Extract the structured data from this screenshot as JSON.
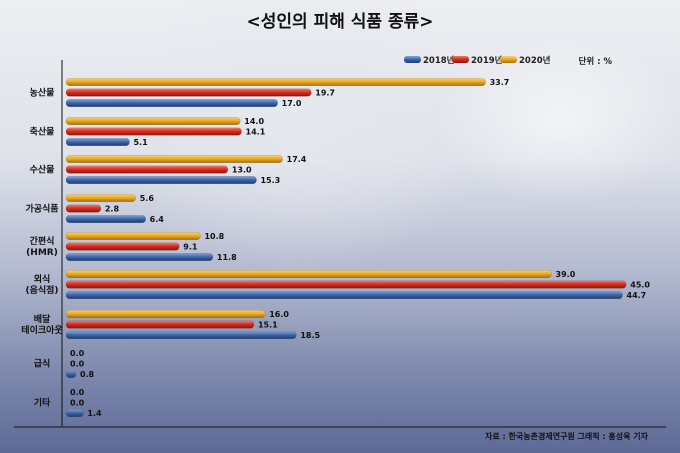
{
  "chart_data": {
    "type": "bar",
    "orientation": "horizontal",
    "title": "<성인의 피해 식품 종류>",
    "unit_label": "단위 : %",
    "categories": [
      [
        "농산물"
      ],
      [
        "축산물"
      ],
      [
        "수산물"
      ],
      [
        "가공식품"
      ],
      [
        "간편식",
        "(HMR)"
      ],
      [
        "외식",
        "(음식점)"
      ],
      [
        "배달",
        "테이크아웃"
      ],
      [
        "급식"
      ],
      [
        "기타"
      ]
    ],
    "series": [
      {
        "name": "2020년",
        "color": "#e8a81f",
        "values": [
          33.7,
          14.0,
          17.4,
          5.6,
          10.8,
          39.0,
          16.0,
          0.0,
          0.0
        ]
      },
      {
        "name": "2019년",
        "color": "#d52a1c",
        "values": [
          19.7,
          14.1,
          13.0,
          2.8,
          9.1,
          45.0,
          15.1,
          0.0,
          0.0
        ]
      },
      {
        "name": "2018년",
        "color": "#3a63a8",
        "values": [
          17.0,
          5.1,
          15.3,
          6.4,
          11.8,
          44.7,
          18.5,
          0.8,
          1.4
        ]
      }
    ],
    "legend_order": [
      "2018년",
      "2019년",
      "2020년"
    ],
    "legend_position": "top-right",
    "xlim": [
      0,
      45
    ],
    "grid": false,
    "source": "자료 : 한국농촌경제연구원   그래픽 : 홍성욱 기자"
  }
}
